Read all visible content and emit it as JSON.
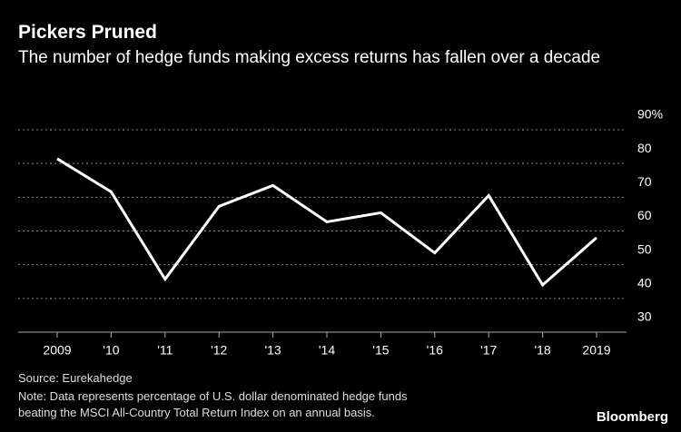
{
  "chart_data": {
    "type": "line",
    "title": "Pickers Pruned",
    "subtitle": "The number of hedge funds making excess returns has fallen over a decade",
    "categories": [
      "2009",
      "'10",
      "'11",
      "'12",
      "'13",
      "'14",
      "'15",
      "'16",
      "'17",
      "'18",
      "2019"
    ],
    "series": [
      {
        "color": "#ffffff",
        "values": [
          81.4,
          71.6,
          45.7,
          67.3,
          73.5,
          62.7,
          65.4,
          53.5,
          70.5,
          44,
          58
        ]
      }
    ],
    "ylim": [
      30,
      90
    ],
    "yticks": [
      30,
      40,
      50,
      60,
      70,
      {
        "value": 80,
        "label": "80"
      },
      {
        "value": 90,
        "label": "90%"
      }
    ],
    "grid": true,
    "source": "Source: Eurekahedge",
    "note": "Note: Data represents percentage of U.S. dollar denominated hedge funds beating the MSCI All-Country Total Return Index on an annual basis.",
    "brand": "Bloomberg"
  }
}
